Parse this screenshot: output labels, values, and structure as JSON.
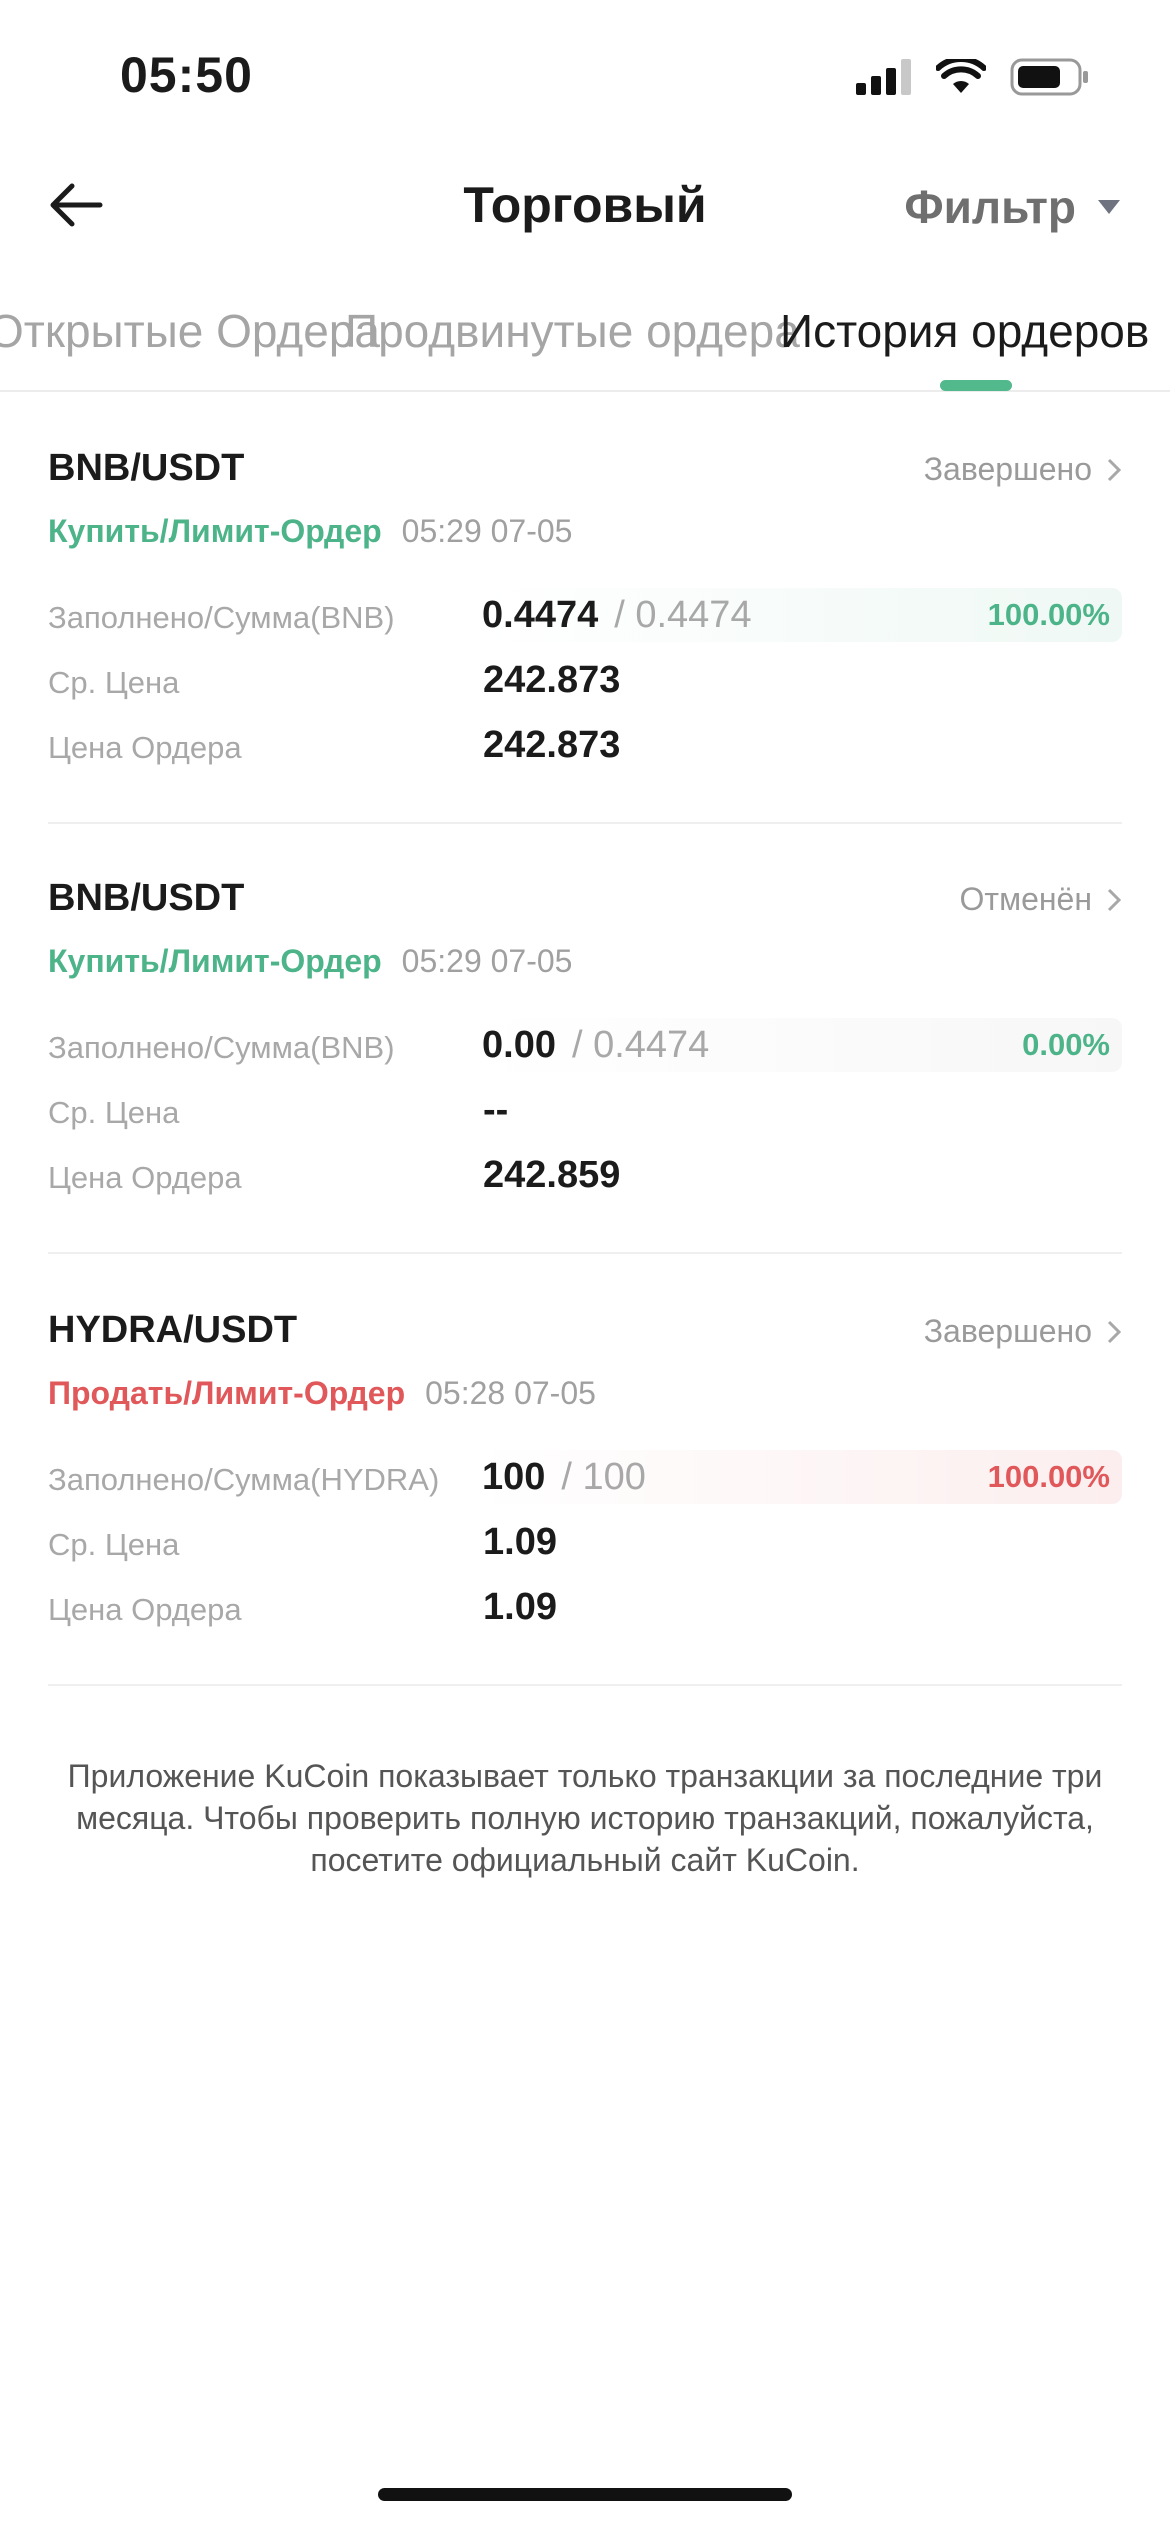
{
  "status_bar": {
    "time": "05:50"
  },
  "header": {
    "title": "Торговый",
    "filter_label": "Фильтр"
  },
  "tabs": [
    {
      "label": "Открытые Ордера",
      "active": false
    },
    {
      "label": "Продвинутые ордера",
      "active": false
    },
    {
      "label": "История ордеров",
      "active": true
    }
  ],
  "labels": {
    "filled_prefix": "Заполнено/Сумма",
    "avg_price": "Ср. Цена",
    "order_price": "Цена Ордера"
  },
  "orders": [
    {
      "pair": "BNB/USDT",
      "status": "Завершено",
      "side": "Купить/Лимит-Ордер",
      "side_type": "buy",
      "time": "05:29 07-05",
      "filled_label": "Заполнено/Сумма(BNB)",
      "filled": "0.4474",
      "total": "/ 0.4474",
      "percent": "100.00%",
      "fill_fraction": 1.0,
      "avg_price": "242.873",
      "order_price": "242.873"
    },
    {
      "pair": "BNB/USDT",
      "status": "Отменён",
      "side": "Купить/Лимит-Ордер",
      "side_type": "buy",
      "time": "05:29 07-05",
      "filled_label": "Заполнено/Сумма(BNB)",
      "filled": "0.00",
      "total": "/ 0.4474",
      "percent": "0.00%",
      "fill_fraction": 0.0,
      "avg_price": "--",
      "order_price": "242.859"
    },
    {
      "pair": "HYDRA/USDT",
      "status": "Завершено",
      "side": "Продать/Лимит-Ордер",
      "side_type": "sell",
      "time": "05:28 07-05",
      "filled_label": "Заполнено/Сумма(HYDRA)",
      "filled": "100",
      "total": "/ 100",
      "percent": "100.00%",
      "fill_fraction": 1.0,
      "avg_price": "1.09",
      "order_price": "1.09"
    }
  ],
  "footer": "Приложение KuCoin показывает только транзакции за последние три месяца. Чтобы проверить полную историю транзакций, пожалуйста, посетите официальный сайт KuCoin.",
  "colors": {
    "buy": "#4db48a",
    "sell": "#e0585a",
    "accent": "#52b98c"
  }
}
